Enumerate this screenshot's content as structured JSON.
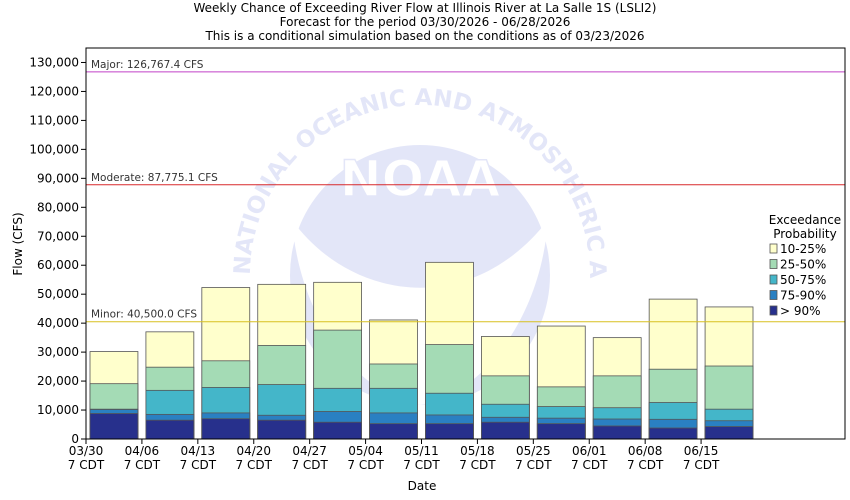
{
  "chart_data": {
    "type": "bar",
    "title": "Weekly Chance of Exceeding River Flow at Illinois River at La Salle 1S (LSLI2)",
    "subtitle_lines": [
      "Forecast for the period 03/30/2026 - 06/28/2026",
      "This is a conditional simulation based on the conditions as of 03/23/2026"
    ],
    "xlabel": "Date",
    "ylabel": "Flow (CFS)",
    "ylim": [
      0,
      135000
    ],
    "yticks": [
      0,
      10000,
      20000,
      30000,
      40000,
      50000,
      60000,
      70000,
      80000,
      90000,
      100000,
      110000,
      120000,
      130000
    ],
    "ytick_labels": [
      "0",
      "10,000",
      "20,000",
      "30,000",
      "40,000",
      "50,000",
      "60,000",
      "70,000",
      "80,000",
      "90,000",
      "100,000",
      "110,000",
      "120,000",
      "130,000"
    ],
    "categories": [
      "03/30",
      "04/06",
      "04/13",
      "04/20",
      "04/27",
      "05/04",
      "05/11",
      "05/18",
      "05/25",
      "06/01",
      "06/08",
      "06/15"
    ],
    "category_sublabel": "7 CDT",
    "stack_order": [
      "> 90%",
      "75-90%",
      "50-75%",
      "25-50%",
      "10-25%"
    ],
    "series": [
      {
        "name": "> 90%",
        "color": "#27308c",
        "values": [
          8800,
          6500,
          7000,
          6500,
          5800,
          5300,
          5300,
          5800,
          5300,
          4500,
          3800,
          4300
        ]
      },
      {
        "name": "75-90%",
        "color": "#2a80c2",
        "values": [
          10200,
          8500,
          9000,
          8200,
          9500,
          9000,
          8300,
          7500,
          7200,
          6900,
          6800,
          6300
        ]
      },
      {
        "name": "50-75%",
        "color": "#44b6c9",
        "values": [
          10300,
          16800,
          17800,
          18800,
          17500,
          17500,
          15800,
          12000,
          11200,
          10800,
          12600,
          10300
        ]
      },
      {
        "name": "25-50%",
        "color": "#a4dbb5",
        "values": [
          19100,
          24800,
          27000,
          32300,
          37600,
          25900,
          32600,
          21800,
          18000,
          21800,
          24100,
          25200
        ]
      },
      {
        "name": "10-25%",
        "color": "#ffffcc",
        "values": [
          30200,
          37000,
          52300,
          53400,
          54100,
          41100,
          61000,
          35400,
          39000,
          35000,
          48300,
          45600
        ]
      }
    ],
    "thresholds": [
      {
        "label": "Major: 126,767.4 CFS",
        "value": 126767.4,
        "color": "#c040c8"
      },
      {
        "label": "Moderate: 87,775.1 CFS",
        "value": 87775.1,
        "color": "#d8282c"
      },
      {
        "label": "Minor: 40,500.0 CFS",
        "value": 40500.0,
        "color": "#d8c020"
      }
    ],
    "legend": {
      "title_lines": [
        "Exceedance",
        "Probability"
      ],
      "entries": [
        "10-25%",
        "25-50%",
        "50-75%",
        "75-90%",
        "> 90%"
      ],
      "placement": "right"
    },
    "watermark_text": "NATIONAL OCEANIC AND ATMOSPHERIC ADMINISTRATION",
    "watermark_logo": "NOAA",
    "grid": false
  }
}
